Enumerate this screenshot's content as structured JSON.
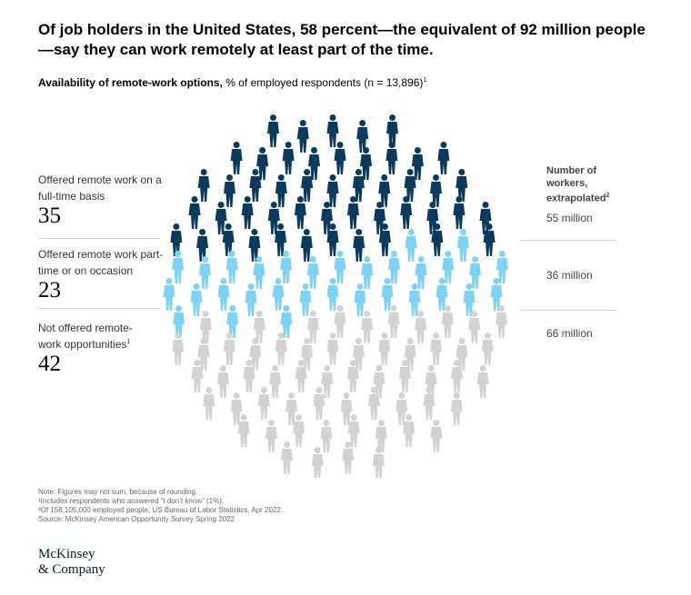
{
  "title": "Of job holders in the United States, 58 percent—the equivalent of 92 million people—say they can work remotely at least part of the time.",
  "subtitle": {
    "bold": "Availability of remote-work options,",
    "rest": " % of employed respondents (n = 13,896)",
    "sup": "1"
  },
  "chart_data": {
    "type": "pictogram",
    "title": "Availability of remote-work options",
    "unit": "% of employed respondents (n = 13,896)",
    "categories": [
      {
        "label": "Offered remote work on a full-time basis",
        "sup": "",
        "value": 35,
        "workers": "55 million",
        "color": "#0b3b5c"
      },
      {
        "label": "Offered remote work part-time or on occasion",
        "sup": "",
        "value": 23,
        "workers": "36 million",
        "color": "#7fd3f2"
      },
      {
        "label": "Not offered remote-work opportunities",
        "sup": "1",
        "value": 42,
        "workers": "66 million",
        "color": "#d2d2d2"
      }
    ],
    "workers_header": {
      "text": "Number of workers, extrapolated",
      "sup": "2"
    }
  },
  "notes": [
    "Note: Figures may not sum, because of rounding.",
    "¹Includes respondents who answered “I don’t know” (1%).",
    "²Of 158,105,000 employed people; US Bureau of Labor Statistics, Apr 2022.",
    "Source: McKinsey American Opportunity Survey Spring 2022"
  ],
  "logo": {
    "line1": "McKinsey",
    "line2": "& Company"
  }
}
